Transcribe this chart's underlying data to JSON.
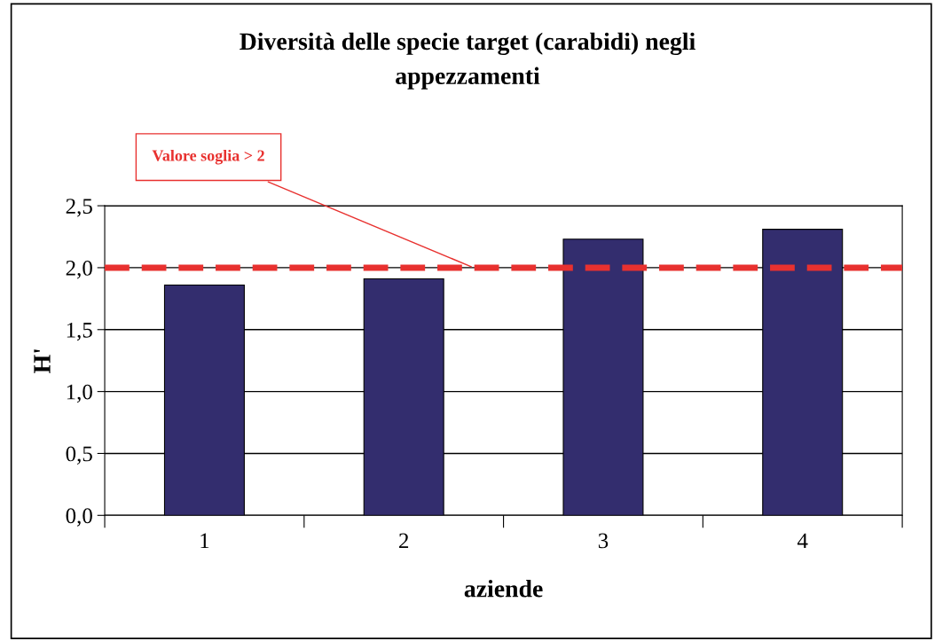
{
  "chart_data": {
    "type": "bar",
    "title": "Diversità delle specie target (carabidi) negli\nappezzamenti",
    "xlabel": "aziende",
    "ylabel": "H'",
    "categories": [
      "1",
      "2",
      "3",
      "4"
    ],
    "values": [
      1.86,
      1.91,
      2.23,
      2.31
    ],
    "color": "#332d6e",
    "ylim": [
      0,
      2.5
    ],
    "yticks": [
      {
        "value": 0,
        "label": "0,0"
      },
      {
        "value": 0.5,
        "label": "0,5"
      },
      {
        "value": 1,
        "label": "1,0"
      },
      {
        "value": 1.5,
        "label": "1,5"
      },
      {
        "value": 2,
        "label": "2,0"
      },
      {
        "value": 2.5,
        "label": "2,5"
      }
    ],
    "grid": "y",
    "ref_lines": [
      {
        "axis": "y",
        "value": 2,
        "label": "Valore soglia > 2",
        "color": "#e8312f",
        "line_style": "dashed"
      }
    ]
  }
}
